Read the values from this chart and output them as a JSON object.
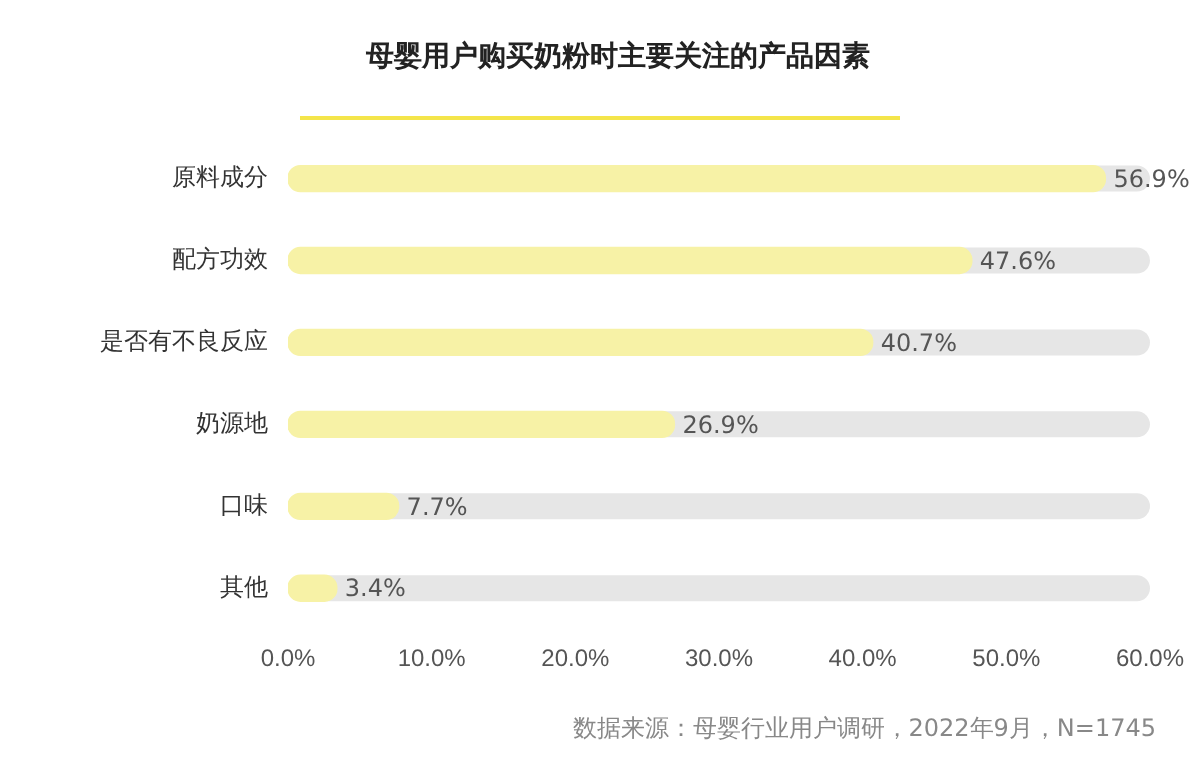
{
  "chart_data": {
    "type": "bar",
    "orientation": "horizontal",
    "title": "母婴用户购买奶粉时主要关注的产品因素",
    "categories": [
      "原料成分",
      "配方功效",
      "是否有不良反应",
      "奶源地",
      "口味",
      "其他"
    ],
    "values": [
      56.9,
      47.6,
      40.7,
      26.9,
      7.7,
      3.4
    ],
    "value_labels": [
      "56.9%",
      "47.6%",
      "40.7%",
      "26.9%",
      "7.7%",
      "3.4%"
    ],
    "color": "#f7f2a6",
    "xlim": [
      0,
      60
    ],
    "xticks": [
      {
        "value": 0,
        "label": "0.0%"
      },
      {
        "value": 10,
        "label": "10.0%"
      },
      {
        "value": 20,
        "label": "20.0%"
      },
      {
        "value": 30,
        "label": "30.0%"
      },
      {
        "value": 40,
        "label": "40.0%"
      },
      {
        "value": 50,
        "label": "50.0%"
      },
      {
        "value": 60,
        "label": "60.0%"
      }
    ],
    "grid": false,
    "legend": false,
    "annotations": [
      "数据来源：母婴行业用户调研，2022年9月，N=1745"
    ]
  }
}
